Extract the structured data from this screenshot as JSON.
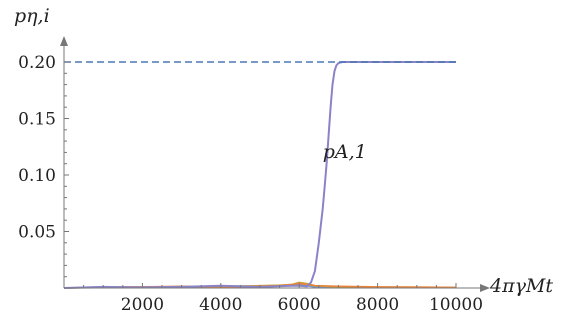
{
  "chart_data": {
    "type": "line",
    "title": "",
    "xlabel": "4πγMt",
    "ylabel": "pη,i",
    "xlim": [
      0,
      10000
    ],
    "ylim": [
      0,
      0.21
    ],
    "grid": false,
    "x_ticks": [
      2000,
      4000,
      6000,
      8000,
      10000
    ],
    "y_ticks": [
      0.05,
      0.1,
      0.15,
      0.2
    ],
    "x_tick_labels": [
      "2000",
      "4000",
      "6000",
      "8000",
      "10000"
    ],
    "y_tick_labels": [
      "0.05",
      "0.10",
      "0.15",
      "0.20"
    ],
    "reference_line": {
      "y": 0.2,
      "style": "dashed",
      "color": "#4a78b5"
    },
    "annotations": [
      {
        "text": "pA,1",
        "x": 6600,
        "y": 0.115
      }
    ],
    "colors": [
      "#8a83c8",
      "#e8843a",
      "#c9a23a",
      "#6f9bd1"
    ],
    "series": [
      {
        "color": "#8a83c8",
        "x": [
          0,
          1000,
          2000,
          3000,
          4000,
          5000,
          5800,
          6000,
          6200,
          6300,
          6400,
          6500,
          6600,
          6650,
          6700,
          6750,
          6800,
          6850,
          6900,
          6950,
          7000,
          7100,
          7200,
          8000,
          9000,
          10000
        ],
        "y": [
          0,
          0.001,
          0.0005,
          0.001,
          0.002,
          0.001,
          0.002,
          0.002,
          0.0015,
          0.005,
          0.015,
          0.04,
          0.07,
          0.09,
          0.11,
          0.135,
          0.16,
          0.18,
          0.192,
          0.197,
          0.199,
          0.2,
          0.2,
          0.2,
          0.2,
          0.2
        ]
      },
      {
        "color": "#e8843a",
        "x": [
          0,
          1000,
          2000,
          3000,
          4000,
          5000,
          5500,
          5800,
          6000,
          6200,
          6400,
          7000,
          8000,
          9000,
          10000
        ],
        "y": [
          0,
          0.0008,
          0.001,
          0.0015,
          0.001,
          0.0015,
          0.002,
          0.003,
          0.004,
          0.003,
          0.002,
          0.0015,
          0.001,
          0.0008,
          0.0005
        ]
      },
      {
        "color": "#c9a23a",
        "x": [
          0,
          1000,
          2000,
          3000,
          4000,
          5000,
          5500,
          5800,
          6000,
          6200,
          6400,
          7000,
          8000,
          9000,
          10000
        ],
        "y": [
          0,
          0.0005,
          0.0008,
          0.001,
          0.0015,
          0.002,
          0.0025,
          0.003,
          0.005,
          0.004,
          0.002,
          0.001,
          0.0008,
          0.0006,
          0.0004
        ]
      },
      {
        "color": "#6f9bd1",
        "x": [
          0,
          2000,
          4000,
          5000,
          6000,
          6200,
          6400,
          7000,
          8000,
          10000
        ],
        "y": [
          0,
          0.0005,
          0.001,
          0.001,
          0.003,
          0.002,
          0.001,
          0.0008,
          0.0005,
          0.0003
        ]
      }
    ]
  }
}
